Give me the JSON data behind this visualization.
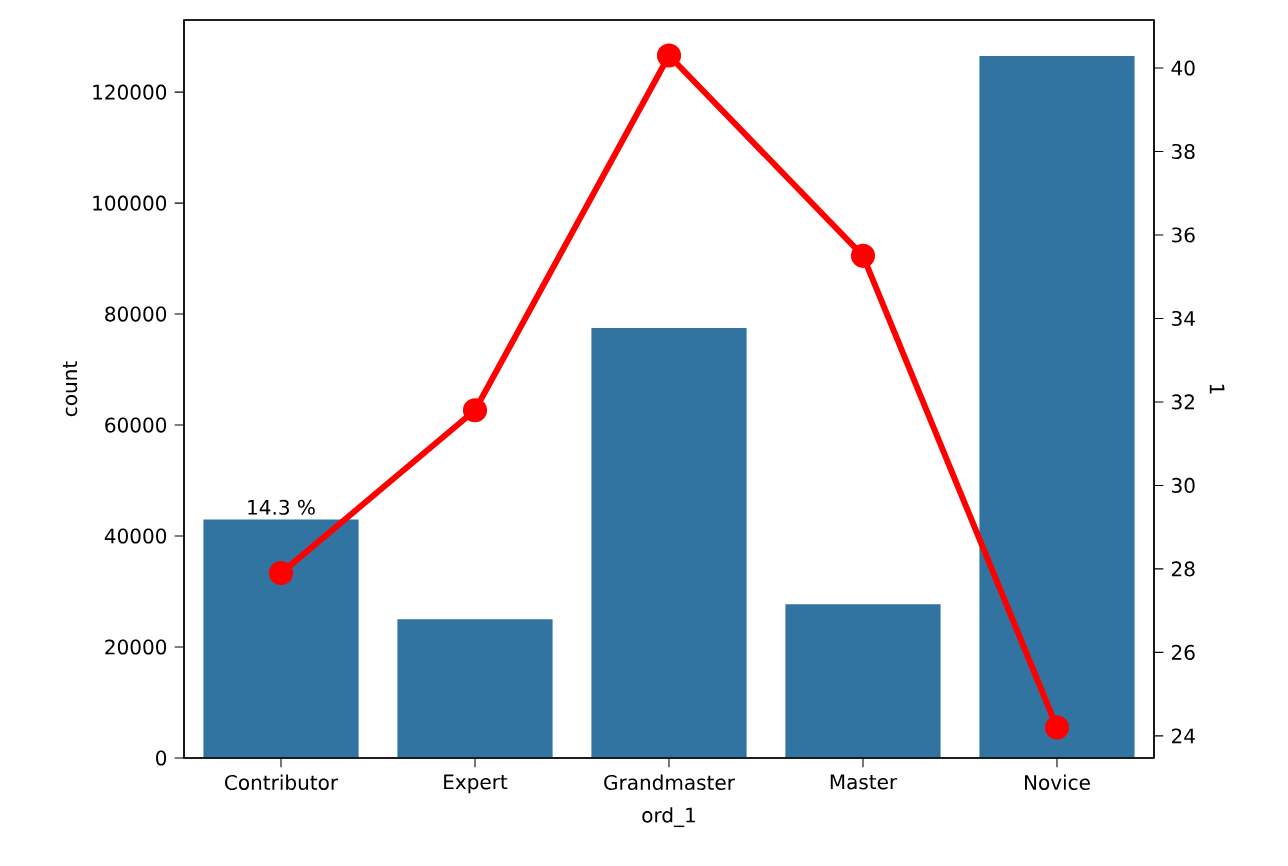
{
  "chart_data": {
    "type": "bar",
    "xlabel": "ord_1",
    "ylabel": "count",
    "y2label": "1",
    "categories": [
      "Contributor",
      "Expert",
      "Grandmaster",
      "Master",
      "Novice"
    ],
    "series": [
      {
        "color": "#3274a1",
        "values": [
          43000,
          25000,
          77500,
          27700,
          126500
        ]
      },
      {
        "type": "line",
        "axis": "y2",
        "color": "#ff0000",
        "marker": "circle",
        "line_style": "solid",
        "values": [
          27.9,
          31.8,
          40.3,
          35.5,
          24.2
        ]
      }
    ],
    "ylim": [
      0,
      133000
    ],
    "yticks": [
      0,
      20000,
      40000,
      60000,
      80000,
      100000,
      120000
    ],
    "y2lim": [
      23.47,
      41.15
    ],
    "y2ticks": [
      24,
      26,
      28,
      30,
      32,
      34,
      36,
      38,
      40
    ],
    "annotations": [
      {
        "text": "14.3 %",
        "x": "Contributor",
        "y": 43000
      }
    ],
    "grid": false,
    "legend": false
  }
}
